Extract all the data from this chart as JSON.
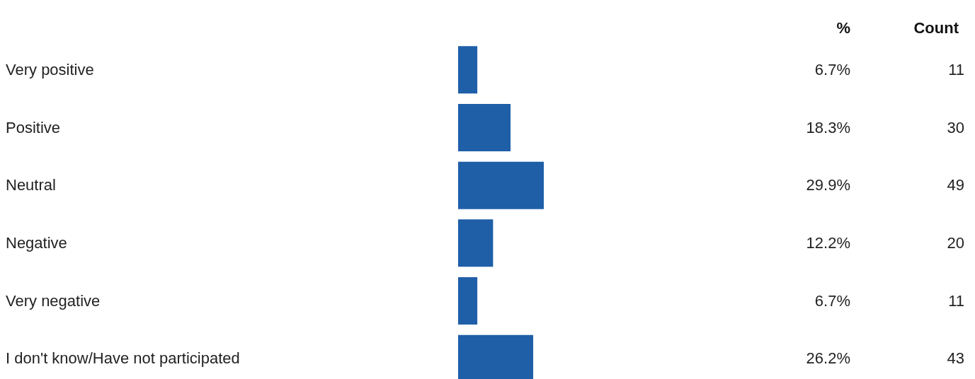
{
  "chart_data": {
    "type": "bar",
    "orientation": "horizontal",
    "categories": [
      "Very positive",
      "Positive",
      "Neutral",
      "Negative",
      "Very negative",
      "I don't know/Have not participated"
    ],
    "values": [
      6.7,
      18.3,
      29.9,
      12.2,
      6.7,
      26.2
    ],
    "value_labels": [
      "6.7%",
      "18.3%",
      "29.9%",
      "12.2%",
      "6.7%",
      "26.2%"
    ],
    "color": "#1f5fa8",
    "annotations": [
      "%",
      "Count",
      "11",
      "30",
      "49",
      "20",
      "11",
      "43"
    ]
  }
}
